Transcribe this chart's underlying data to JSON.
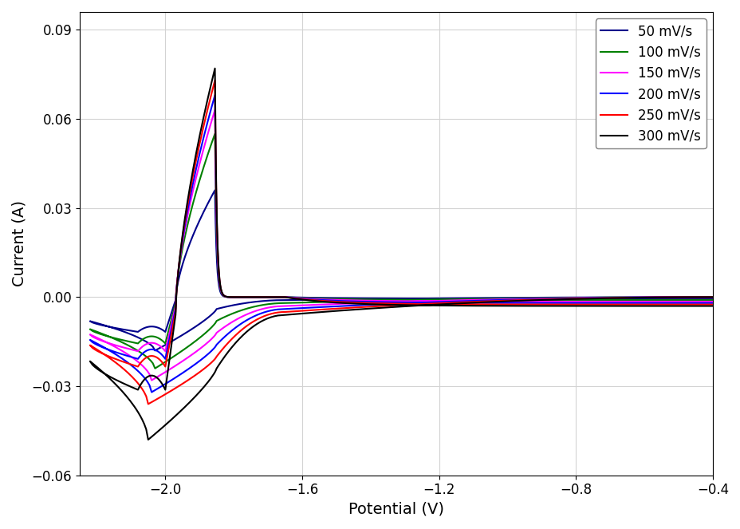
{
  "xlabel": "Potential (V)",
  "ylabel": "Current (A)",
  "xlim": [
    -2.25,
    -0.4
  ],
  "ylim": [
    -0.06,
    0.096
  ],
  "xticks": [
    -2.0,
    -1.6,
    -1.2,
    -0.8,
    -0.4
  ],
  "yticks": [
    -0.06,
    -0.03,
    0.0,
    0.03,
    0.06,
    0.09
  ],
  "legend_labels": [
    "50 mV/s",
    "100 mV/s",
    "150 mV/s",
    "200 mV/s",
    "250 mV/s",
    "300 mV/s"
  ],
  "colors": [
    "#00008B",
    "#008000",
    "#FF00FF",
    "#0000FF",
    "#FF0000",
    "#000000"
  ],
  "anodic_peaks": [
    0.036,
    0.055,
    0.063,
    0.068,
    0.073,
    0.077
  ],
  "cathodic_peaks": [
    -0.018,
    -0.024,
    -0.028,
    -0.032,
    -0.036,
    -0.048
  ],
  "anodic_peak_pos": [
    -1.855,
    -1.855,
    -1.855,
    -1.855,
    -1.855,
    -1.855
  ],
  "cathodic_trough_pos": [
    -2.03,
    -2.03,
    -2.04,
    -2.04,
    -2.05,
    -2.05
  ],
  "background_color": "#ffffff",
  "font_size": 14,
  "legend_fontsize": 12
}
